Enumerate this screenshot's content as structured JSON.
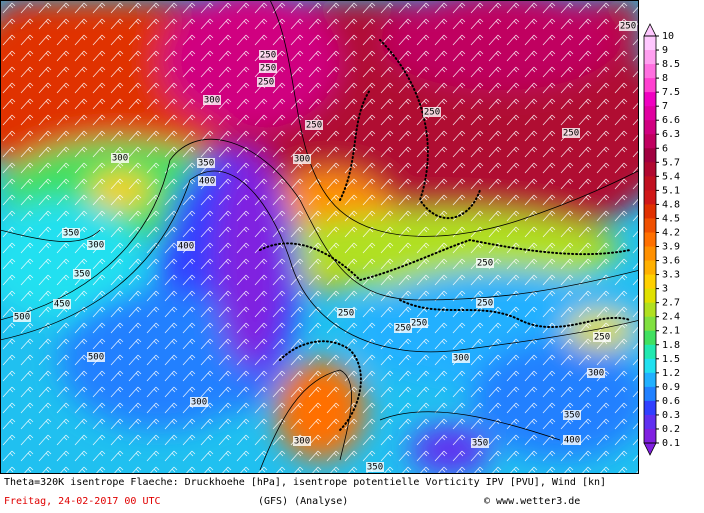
{
  "map": {
    "contour_labels": [
      250,
      250,
      250,
      300,
      300,
      250,
      250,
      250,
      300,
      350,
      400,
      350,
      300,
      400,
      350,
      450,
      500,
      500,
      250,
      250,
      250,
      250,
      250,
      250,
      300,
      300,
      300,
      350,
      400,
      350,
      300,
      350,
      250
    ],
    "colorbar": {
      "levels": [
        10,
        9,
        8.5,
        8,
        7.5,
        7,
        6.6,
        6.3,
        6,
        5.7,
        5.4,
        5.1,
        4.8,
        4.5,
        4.2,
        3.9,
        3.6,
        3.3,
        3,
        2.7,
        2.4,
        2.1,
        1.8,
        1.5,
        1.2,
        0.9,
        0.6,
        0.3,
        0.2,
        0.1
      ],
      "colors": [
        "#ffc8ff",
        "#ffa0f0",
        "#ff70e0",
        "#ff40d0",
        "#f000c0",
        "#e000a0",
        "#d00080",
        "#c00060",
        "#a00040",
        "#b00830",
        "#c01020",
        "#d01818",
        "#e03000",
        "#f05000",
        "#ff7000",
        "#ff9000",
        "#ffb000",
        "#ffd000",
        "#e0e000",
        "#b0e020",
        "#80e040",
        "#40e060",
        "#20e8b0",
        "#20e0f0",
        "#20b0ff",
        "#2080ff",
        "#3040ff",
        "#6030f0",
        "#8020e0"
      ]
    },
    "footer": {
      "description": "Theta=320K isentrope Flaeche: Druckhoehe [hPa], isentrope potentielle Vorticity IPV [PVU], Wind [kn]",
      "date": "Freitag, 24-02-2017  00 UTC",
      "model": "(GFS)  (Analyse)",
      "copyright": "© www.wetter3.de"
    }
  }
}
